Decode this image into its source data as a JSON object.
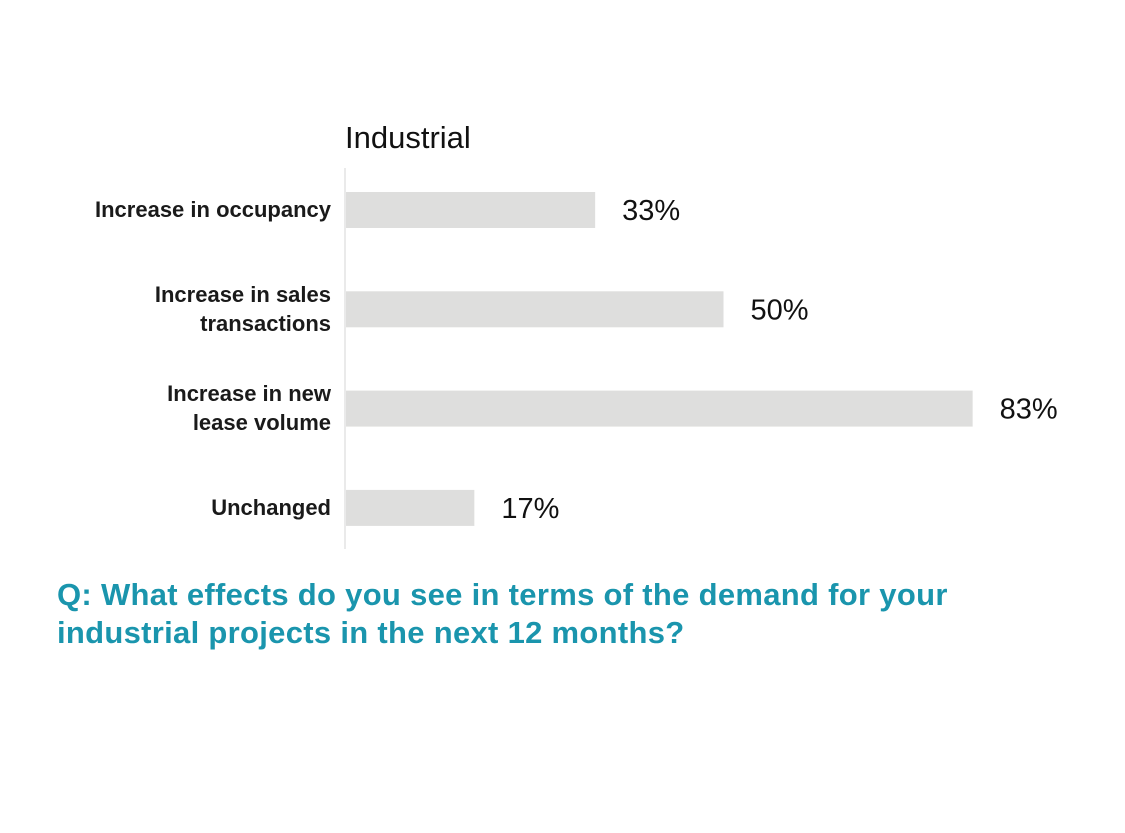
{
  "chart_data": {
    "type": "bar",
    "orientation": "horizontal",
    "title": "Industrial",
    "categories": [
      [
        "Increase in occupancy"
      ],
      [
        "Increase in sales",
        "transactions"
      ],
      [
        "Increase in new",
        "lease volume"
      ],
      [
        "Unchanged"
      ]
    ],
    "values": [
      33,
      50,
      83,
      17
    ],
    "value_labels": [
      "33%",
      "50%",
      "83%",
      "17%"
    ],
    "xlim": [
      0,
      100
    ],
    "grid": false,
    "legend": "none",
    "bar_color": "#dededd"
  },
  "question": {
    "text": "Q: What effects do you see in terms of the demand for your industrial projects in the next 12 months?",
    "color": "#1a95ad"
  }
}
